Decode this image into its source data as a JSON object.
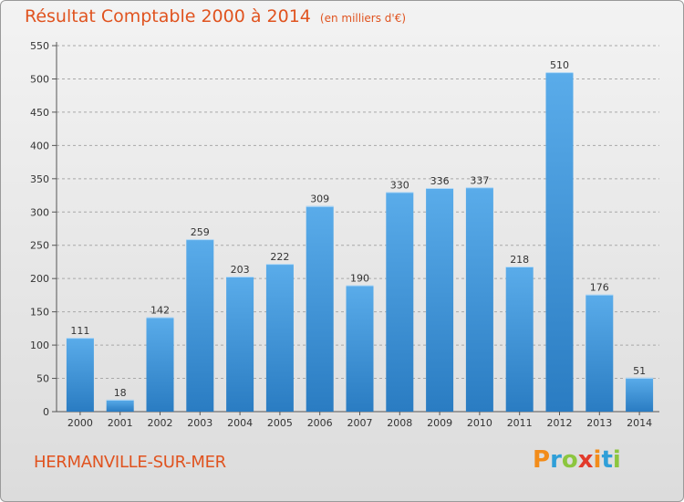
{
  "title": "Résultat Comptable 2000 à 2014",
  "subtitle": "(en milliers d'€)",
  "commune": "HERMANVILLE-SUR-MER",
  "logo": {
    "text": "Proxiti",
    "letters": [
      {
        "ch": "P",
        "color": "#f28c1a"
      },
      {
        "ch": "r",
        "color": "#2f9fd8"
      },
      {
        "ch": "o",
        "color": "#8cc63f"
      },
      {
        "ch": "x",
        "color": "#e23a2b"
      },
      {
        "ch": "i",
        "color": "#f28c1a"
      },
      {
        "ch": "t",
        "color": "#2f9fd8"
      },
      {
        "ch": "i",
        "color": "#8cc63f"
      }
    ]
  },
  "colors": {
    "title": "#e0531f",
    "bar_top": "#5aacea",
    "bar_bottom": "#2a7cc2",
    "grid": "#a8a8a8"
  },
  "chart_data": {
    "type": "bar",
    "title": "Résultat Comptable 2000 à 2014",
    "subtitle": "(en milliers d'€)",
    "categories": [
      "2000",
      "2001",
      "2002",
      "2003",
      "2004",
      "2005",
      "2006",
      "2007",
      "2008",
      "2009",
      "2010",
      "2011",
      "2012",
      "2013",
      "2014"
    ],
    "values": [
      111,
      18,
      142,
      259,
      203,
      222,
      309,
      190,
      330,
      336,
      337,
      218,
      510,
      176,
      51
    ],
    "ylim": [
      0,
      550
    ],
    "yticks": [
      0,
      50,
      100,
      150,
      200,
      250,
      300,
      350,
      400,
      450,
      500,
      550
    ],
    "grid": "horizontal dashed",
    "data_labels": true
  }
}
